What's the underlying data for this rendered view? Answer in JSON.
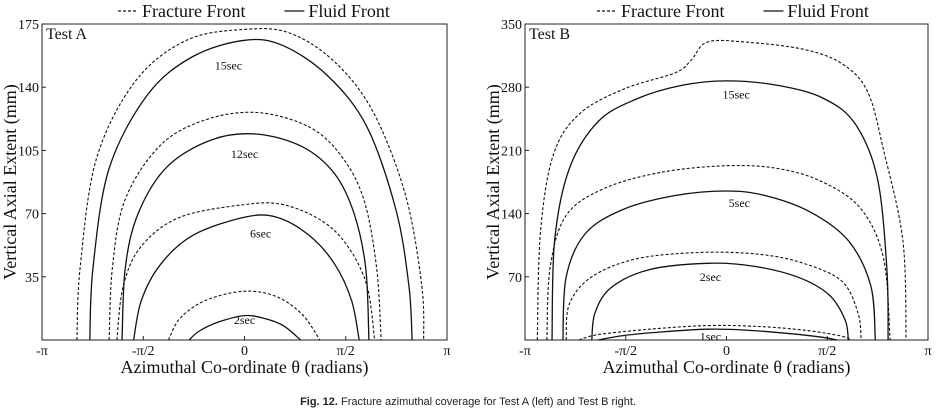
{
  "caption": {
    "label": "Fig. 12.",
    "text": "Fracture azimuthal coverage for Test A (left) and Test B right."
  },
  "colors": {
    "line": "#111111",
    "frame": "#222222"
  },
  "chart_data": [
    {
      "type": "line",
      "panel_label": "Test A",
      "xlabel": "Azimuthal Co-ordinate θ (radians)",
      "ylabel": "Vertical Axial Extent (mm)",
      "xlim": [
        -3.1416,
        3.1416
      ],
      "ylim": [
        0,
        175
      ],
      "xticks": [
        {
          "value": -3.1416,
          "label": "-π"
        },
        {
          "value": -1.5708,
          "label": "-π/2"
        },
        {
          "value": 0,
          "label": "0"
        },
        {
          "value": 1.5708,
          "label": "π/2"
        },
        {
          "value": 3.1416,
          "label": "π"
        }
      ],
      "yticks": [
        {
          "value": 35,
          "label": "35"
        },
        {
          "value": 70,
          "label": "70"
        },
        {
          "value": 105,
          "label": "105"
        },
        {
          "value": 140,
          "label": "140"
        },
        {
          "value": 175,
          "label": "175"
        }
      ],
      "legend": [
        {
          "name": "Fracture Front",
          "style": "dashed"
        },
        {
          "name": "Fluid Front",
          "style": "solid"
        }
      ],
      "legend_position": "top",
      "series": [
        {
          "time": "2sec",
          "label_at": [
            0.0,
            11
          ],
          "fluid": [
            [
              -0.86,
              0
            ],
            [
              -0.7,
              5
            ],
            [
              -0.4,
              10
            ],
            [
              0,
              13.5
            ],
            [
              0.3,
              12
            ],
            [
              0.6,
              8
            ],
            [
              0.87,
              0
            ]
          ],
          "fracture": [
            [
              -1.18,
              0
            ],
            [
              -1.0,
              12
            ],
            [
              -0.6,
              22
            ],
            [
              0,
              27
            ],
            [
              0.5,
              24
            ],
            [
              0.9,
              14
            ],
            [
              1.17,
              0
            ]
          ]
        },
        {
          "time": "6sec",
          "label_at": [
            0.25,
            59
          ],
          "fluid": [
            [
              -1.72,
              0
            ],
            [
              -1.6,
              22
            ],
            [
              -1.3,
              42
            ],
            [
              -0.8,
              58
            ],
            [
              0,
              68
            ],
            [
              0.5,
              68
            ],
            [
              1.0,
              58
            ],
            [
              1.4,
              42
            ],
            [
              1.66,
              22
            ],
            [
              1.78,
              0
            ]
          ],
          "fracture": [
            [
              -1.98,
              0
            ],
            [
              -1.88,
              30
            ],
            [
              -1.6,
              52
            ],
            [
              -1.0,
              68
            ],
            [
              0,
              75
            ],
            [
              0.6,
              75
            ],
            [
              1.2,
              66
            ],
            [
              1.6,
              52
            ],
            [
              1.9,
              30
            ],
            [
              2.02,
              0
            ]
          ]
        },
        {
          "time": "12sec",
          "label_at": [
            0.0,
            103
          ],
          "fluid": [
            [
              -1.9,
              0
            ],
            [
              -1.85,
              40
            ],
            [
              -1.65,
              70
            ],
            [
              -1.2,
              96
            ],
            [
              -0.5,
              111
            ],
            [
              0.2,
              114
            ],
            [
              0.9,
              107
            ],
            [
              1.4,
              92
            ],
            [
              1.7,
              70
            ],
            [
              1.88,
              40
            ],
            [
              1.93,
              0
            ]
          ],
          "fracture": [
            [
              -2.1,
              0
            ],
            [
              -2.05,
              40
            ],
            [
              -1.85,
              78
            ],
            [
              -1.3,
              108
            ],
            [
              -0.6,
              122
            ],
            [
              0.2,
              126
            ],
            [
              1.0,
              118
            ],
            [
              1.5,
              102
            ],
            [
              1.85,
              78
            ],
            [
              2.05,
              40
            ],
            [
              2.12,
              0
            ]
          ]
        },
        {
          "time": "15sec",
          "label_at": [
            -0.25,
            152
          ],
          "fluid": [
            [
              -2.4,
              0
            ],
            [
              -2.35,
              40
            ],
            [
              -2.1,
              95
            ],
            [
              -1.5,
              136
            ],
            [
              -0.8,
              157
            ],
            [
              0,
              166
            ],
            [
              0.6,
              163
            ],
            [
              1.3,
              146
            ],
            [
              1.9,
              118
            ],
            [
              2.35,
              72
            ],
            [
              2.55,
              30
            ],
            [
              2.6,
              0
            ]
          ],
          "fracture": [
            [
              -2.6,
              0
            ],
            [
              -2.55,
              40
            ],
            [
              -2.3,
              100
            ],
            [
              -1.7,
              143
            ],
            [
              -0.9,
              166
            ],
            [
              0,
              172
            ],
            [
              0.7,
              170
            ],
            [
              1.4,
              154
            ],
            [
              2.0,
              126
            ],
            [
              2.5,
              80
            ],
            [
              2.75,
              30
            ],
            [
              2.78,
              0
            ]
          ]
        }
      ]
    },
    {
      "type": "line",
      "panel_label": "Test B",
      "xlabel": "Azimuthal Co-ordinate θ (radians)",
      "ylabel": "Vertical Axial Extent (mm)",
      "xlim": [
        -3.1416,
        3.1416
      ],
      "ylim": [
        0,
        350
      ],
      "xticks": [
        {
          "value": -3.1416,
          "label": "-π"
        },
        {
          "value": -1.5708,
          "label": "-π/2"
        },
        {
          "value": 0,
          "label": "0"
        },
        {
          "value": 1.5708,
          "label": "π/2"
        },
        {
          "value": 3.1416,
          "label": "π"
        }
      ],
      "yticks": [
        {
          "value": 70,
          "label": "70"
        },
        {
          "value": 140,
          "label": "140"
        },
        {
          "value": 210,
          "label": "210"
        },
        {
          "value": 280,
          "label": "280"
        },
        {
          "value": 350,
          "label": "350"
        }
      ],
      "legend": [
        {
          "name": "Fracture Front",
          "style": "dashed"
        },
        {
          "name": "Fluid Front",
          "style": "solid"
        }
      ],
      "legend_position": "top",
      "series": [
        {
          "time": "1sec",
          "label_at": [
            -0.25,
            4
          ],
          "fluid": [
            [
              -2.0,
              0
            ],
            [
              -1.6,
              5
            ],
            [
              -1.0,
              9
            ],
            [
              -0.3,
              12
            ],
            [
              0.3,
              11
            ],
            [
              1.0,
              7
            ],
            [
              1.5,
              3
            ],
            [
              1.72,
              0
            ]
          ],
          "fracture": [
            [
              -2.3,
              0
            ],
            [
              -2.0,
              6
            ],
            [
              -1.2,
              12
            ],
            [
              -0.3,
              16
            ],
            [
              0.5,
              15
            ],
            [
              1.2,
              11
            ],
            [
              1.75,
              5
            ],
            [
              1.95,
              0
            ]
          ]
        },
        {
          "time": "2sec",
          "label_at": [
            -0.25,
            70
          ],
          "fluid": [
            [
              -2.1,
              0
            ],
            [
              -2.05,
              30
            ],
            [
              -1.8,
              58
            ],
            [
              -1.2,
              78
            ],
            [
              -0.3,
              85
            ],
            [
              0.4,
              82
            ],
            [
              1.1,
              70
            ],
            [
              1.6,
              50
            ],
            [
              1.85,
              22
            ],
            [
              1.9,
              0
            ]
          ],
          "fracture": [
            [
              -2.5,
              0
            ],
            [
              -2.45,
              40
            ],
            [
              -2.1,
              70
            ],
            [
              -1.4,
              90
            ],
            [
              -0.4,
              97
            ],
            [
              0.5,
              95
            ],
            [
              1.2,
              85
            ],
            [
              1.8,
              65
            ],
            [
              2.05,
              30
            ],
            [
              2.1,
              0
            ]
          ]
        },
        {
          "time": "5sec",
          "label_at": [
            0.2,
            152
          ],
          "fluid": [
            [
              -2.55,
              0
            ],
            [
              -2.5,
              70
            ],
            [
              -2.2,
              118
            ],
            [
              -1.6,
              145
            ],
            [
              -0.8,
              160
            ],
            [
              0,
              165
            ],
            [
              0.6,
              160
            ],
            [
              1.3,
              142
            ],
            [
              1.9,
              110
            ],
            [
              2.25,
              60
            ],
            [
              2.32,
              0
            ]
          ],
          "fracture": [
            [
              -2.8,
              0
            ],
            [
              -2.75,
              80
            ],
            [
              -2.5,
              138
            ],
            [
              -1.9,
              168
            ],
            [
              -1.0,
              186
            ],
            [
              0,
              193
            ],
            [
              0.8,
              190
            ],
            [
              1.5,
              175
            ],
            [
              2.1,
              145
            ],
            [
              2.45,
              90
            ],
            [
              2.55,
              0
            ]
          ]
        },
        {
          "time": "15sec",
          "label_at": [
            0.15,
            272
          ],
          "fluid": [
            [
              -2.72,
              0
            ],
            [
              -2.68,
              110
            ],
            [
              -2.45,
              190
            ],
            [
              -2.0,
              242
            ],
            [
              -1.4,
              267
            ],
            [
              -0.7,
              282
            ],
            [
              0,
              287
            ],
            [
              0.8,
              282
            ],
            [
              1.5,
              268
            ],
            [
              2.0,
              240
            ],
            [
              2.35,
              180
            ],
            [
              2.5,
              80
            ],
            [
              2.52,
              0
            ]
          ],
          "fracture": [
            [
              -2.95,
              0
            ],
            [
              -2.9,
              120
            ],
            [
              -2.7,
              205
            ],
            [
              -2.3,
              250
            ],
            [
              -1.6,
              278
            ],
            [
              -0.8,
              296
            ],
            [
              -0.55,
              310
            ],
            [
              -0.3,
              330
            ],
            [
              0.3,
              330
            ],
            [
              1.2,
              322
            ],
            [
              1.8,
              306
            ],
            [
              2.2,
              275
            ],
            [
              2.45,
              210
            ],
            [
              2.75,
              110
            ],
            [
              2.8,
              0
            ]
          ]
        }
      ]
    }
  ]
}
